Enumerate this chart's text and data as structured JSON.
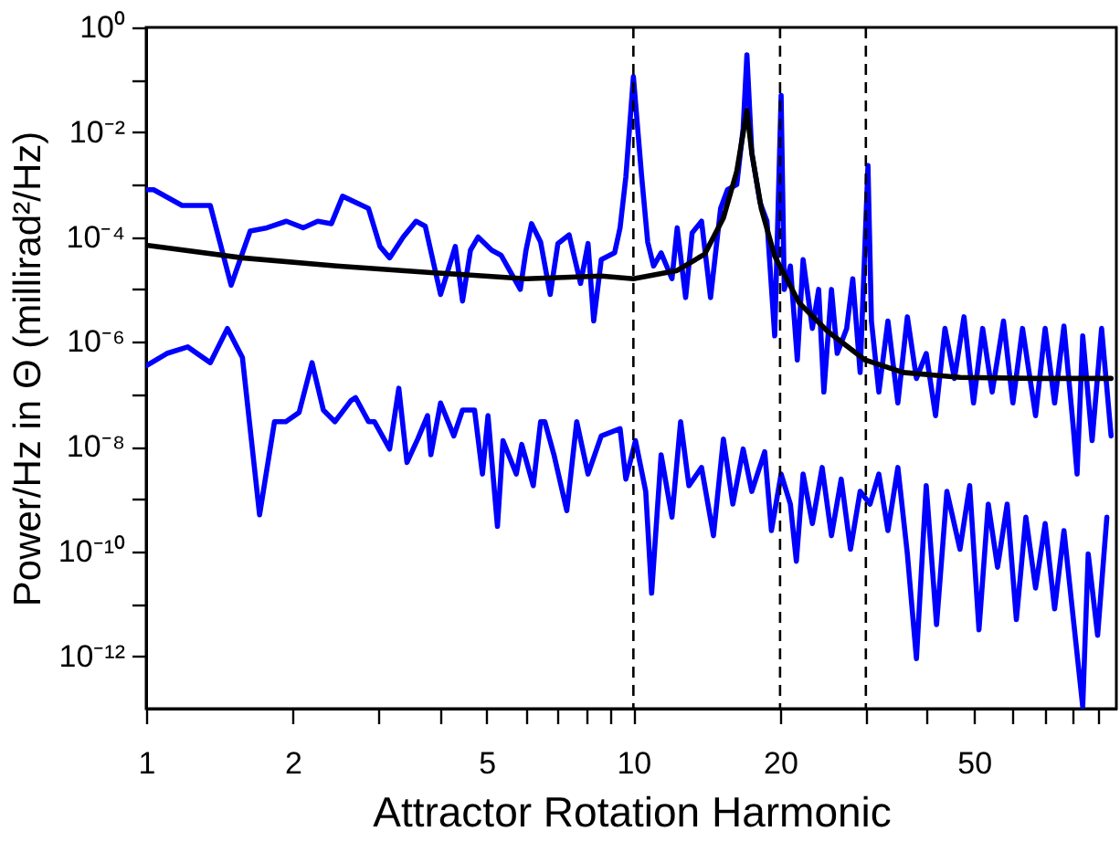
{
  "chart_data": {
    "type": "line",
    "xlabel": "Attractor Rotation Harmonic",
    "ylabel": "Power/Hz in Θ (millirad²/Hz)",
    "log": "xy",
    "grid": false,
    "legend": false,
    "marker": "none",
    "line_style": "solid",
    "xlim": [
      1,
      98
    ],
    "ylim": [
      1e-13,
      1
    ],
    "xticks": [
      1,
      2,
      {
        "value": 3,
        "label": null
      },
      {
        "value": 4,
        "label": null
      },
      5,
      {
        "value": 6,
        "label": null
      },
      {
        "value": 7,
        "label": null
      },
      {
        "value": 8,
        "label": null
      },
      {
        "value": 9,
        "label": null
      },
      10,
      20,
      {
        "value": 30,
        "label": null
      },
      {
        "value": 40,
        "label": null
      },
      50,
      {
        "value": 60,
        "label": null
      },
      {
        "value": 70,
        "label": null
      },
      {
        "value": 80,
        "label": null
      },
      {
        "value": 90,
        "label": null
      }
    ],
    "yticks": [
      {
        "value": 1,
        "label": "10⁰"
      },
      {
        "value": 0.1,
        "label": null
      },
      {
        "value": 0.01,
        "label": "10⁻²"
      },
      {
        "value": 0.001,
        "label": null
      },
      {
        "value": 0.0001,
        "label": "10⁻⁴"
      },
      {
        "value": 1e-05,
        "label": null
      },
      {
        "value": 1e-06,
        "label": "10⁻⁶"
      },
      {
        "value": 1e-07,
        "label": null
      },
      {
        "value": 1e-08,
        "label": "10⁻⁸"
      },
      {
        "value": 1e-09,
        "label": null
      },
      {
        "value": 1e-10,
        "label": "10⁻¹⁰"
      },
      {
        "value": 1e-11,
        "label": null
      },
      {
        "value": 1e-12,
        "label": "10⁻¹²"
      }
    ],
    "ref_lines": [
      {
        "axis": "x",
        "value": 10,
        "color": "#000000",
        "line_style": "dashed"
      },
      {
        "axis": "x",
        "value": 20,
        "color": "#000000",
        "line_style": "dashed"
      },
      {
        "axis": "x",
        "value": 30,
        "color": "#000000",
        "line_style": "dashed"
      }
    ],
    "series": [
      {
        "color": "#0000ff",
        "x": [
          1,
          1.036,
          1.185,
          1.354,
          1.494,
          1.635,
          1.77,
          1.94,
          2.1,
          2.25,
          2.4,
          2.53,
          2.86,
          3.02,
          3.16,
          3.37,
          3.58,
          3.74,
          4.02,
          4.31,
          4.46,
          4.63,
          4.8,
          5.12,
          5.35,
          5.86,
          6.02,
          6.18,
          6.45,
          6.75,
          7.0,
          7.38,
          7.79,
          8.07,
          8.29,
          8.59,
          9.15,
          9.39,
          9.65,
          10,
          10.4,
          10.7,
          11.0,
          11.4,
          12.0,
          12.3,
          12.8,
          13.2,
          13.8,
          14.4,
          15.1,
          15.6,
          16.3,
          16.8,
          17.1,
          17.5,
          18.2,
          18.8,
          19.5,
          20.1,
          20.4,
          21.0,
          21.7,
          22.3,
          23.3,
          24.0,
          24.6,
          25.5,
          26.2,
          27.4,
          28.2,
          29.2,
          30.3,
          30.8,
          31.9,
          33.3,
          34.9,
          36.5,
          38.1,
          39.9,
          41.7,
          43.6,
          45.6,
          47.7,
          49.9,
          52.1,
          54.5,
          57.5,
          60.1,
          62.9,
          66.9,
          70.0,
          73.2,
          76.5,
          80.0,
          81.4,
          83.6,
          87.4,
          91.4,
          95.6
        ],
        "values": [
          0.0008,
          0.0008,
          0.0004,
          0.0004,
          1.2e-05,
          0.00013,
          0.00015,
          0.0002,
          0.00015,
          0.0002,
          0.00018,
          0.0006,
          0.00035,
          6.6e-05,
          4e-05,
          0.0001,
          0.0002,
          0.00016,
          8e-06,
          6.6e-05,
          6e-06,
          5.6e-05,
          0.0001,
          5.6e-05,
          4.5e-05,
          1e-05,
          5.6e-05,
          0.00018,
          8e-05,
          8e-06,
          7.5e-05,
          0.00011,
          1.3e-05,
          7.5e-05,
          2.5e-06,
          3.7e-05,
          5e-05,
          0.00015,
          0.0014,
          0.115,
          0.0014,
          8e-05,
          2.8e-05,
          5e-05,
          1.6e-05,
          0.00015,
          7e-06,
          0.00012,
          0.0002,
          7e-06,
          0.00035,
          0.0008,
          0.001,
          0.012,
          0.3,
          0.004,
          0.00045,
          0.0002,
          1.3e-06,
          0.05,
          1e-05,
          2.8e-05,
          4.5e-07,
          3.7e-05,
          1.8e-06,
          1e-05,
          1.1e-07,
          1e-05,
          6e-07,
          1.8e-06,
          1.6e-05,
          2.6e-07,
          0.0023,
          2.5e-06,
          1.1e-07,
          2.5e-06,
          6.8e-08,
          3e-06,
          2e-07,
          6e-07,
          3.9e-08,
          1.8e-06,
          2e-07,
          3e-06,
          6.8e-08,
          1.8e-06,
          1.1e-07,
          2.5e-06,
          6.8e-08,
          1.8e-06,
          3.9e-08,
          1.8e-06,
          6.8e-08,
          2e-06,
          2.2e-08,
          3e-09,
          1.3e-06,
          1.3e-08,
          1.8e-06,
          1.6e-08
        ]
      },
      {
        "color": "#0000ff",
        "x": [
          1,
          1.103,
          1.217,
          1.354,
          1.468,
          1.576,
          1.709,
          1.834,
          1.935,
          2.06,
          2.19,
          2.31,
          2.44,
          2.63,
          2.69,
          2.86,
          2.94,
          3.16,
          3.3,
          3.43,
          3.61,
          3.78,
          3.84,
          4.02,
          4.28,
          4.46,
          4.72,
          4.9,
          5.03,
          5.26,
          5.4,
          5.75,
          5.9,
          6.23,
          6.45,
          6.58,
          6.87,
          7.3,
          7.65,
          8.07,
          8.59,
          9.39,
          9.65,
          10.1,
          10.6,
          10.9,
          11.4,
          12.0,
          12.5,
          13.0,
          13.8,
          14.6,
          15.3,
          16.0,
          16.8,
          17.5,
          18.6,
          19.2,
          20.1,
          21.0,
          21.6,
          22.3,
          23.3,
          24.4,
          25.5,
          26.7,
          27.9,
          29.2,
          30.6,
          31.9,
          33.3,
          34.9,
          36.5,
          38.1,
          39.9,
          41.9,
          44.0,
          46.8,
          49.0,
          51.2,
          53.5,
          55.9,
          58.5,
          61.1,
          63.9,
          66.9,
          70.0,
          73.2,
          76.5,
          80.0,
          83.6,
          85.8,
          89.7,
          93.7
        ],
        "values": [
          3.5e-07,
          6e-07,
          8e-07,
          4e-07,
          1.8e-06,
          5e-07,
          5e-10,
          3e-08,
          3e-08,
          4.5e-08,
          4e-07,
          5e-08,
          3e-08,
          7.5e-08,
          8.6e-08,
          3e-08,
          3e-08,
          9e-09,
          1.3e-07,
          5e-09,
          1.4e-08,
          3.9e-08,
          7e-09,
          6.8e-08,
          1.6e-08,
          5e-08,
          5e-08,
          3e-09,
          3.9e-08,
          3e-10,
          1.3e-08,
          3e-09,
          1.1e-08,
          1.8e-09,
          3e-08,
          3e-08,
          7e-09,
          6e-10,
          3e-08,
          3e-09,
          1.6e-08,
          2.2e-08,
          2.4e-09,
          1.3e-08,
          1.4e-09,
          1.6e-11,
          7e-09,
          4.5e-10,
          3e-08,
          1.8e-09,
          4e-09,
          2e-10,
          1.4e-08,
          8e-10,
          9e-09,
          1.4e-09,
          8e-09,
          2.5e-10,
          3e-09,
          8e-10,
          6.5e-11,
          3e-09,
          3.4e-10,
          4e-09,
          2e-10,
          2.4e-09,
          1.1e-10,
          1.4e-09,
          8e-10,
          3e-09,
          2.5e-10,
          4e-09,
          9e-11,
          9e-13,
          1.8e-09,
          4e-12,
          1.4e-09,
          1.1e-10,
          1.8e-09,
          3.2e-12,
          8e-10,
          5e-11,
          8e-10,
          5e-12,
          4.5e-10,
          2e-11,
          3.4e-10,
          8e-12,
          2.5e-10,
          5e-12,
          1.1e-13,
          9e-11,
          2.5e-12,
          4.5e-10
        ]
      },
      {
        "color": "#000000",
        "x": [
          1,
          1.576,
          2.46,
          3.84,
          6.02,
          8.59,
          10,
          12.3,
          14.0,
          15.3,
          16.3,
          17.1,
          17.5,
          18.3,
          19.5,
          21.9,
          25.0,
          29.9,
          35.8,
          46.9,
          66.9,
          95.6
        ],
        "values": [
          7e-05,
          4e-05,
          2.8e-05,
          2.1e-05,
          1.6e-05,
          1.8e-05,
          1.6e-05,
          2.3e-05,
          4.7e-05,
          0.00023,
          0.0018,
          0.026,
          0.004,
          0.00035,
          4.3e-05,
          5.5e-06,
          1.6e-06,
          4.5e-07,
          2.6e-07,
          2.1e-07,
          2e-07,
          2e-07
        ]
      }
    ]
  }
}
